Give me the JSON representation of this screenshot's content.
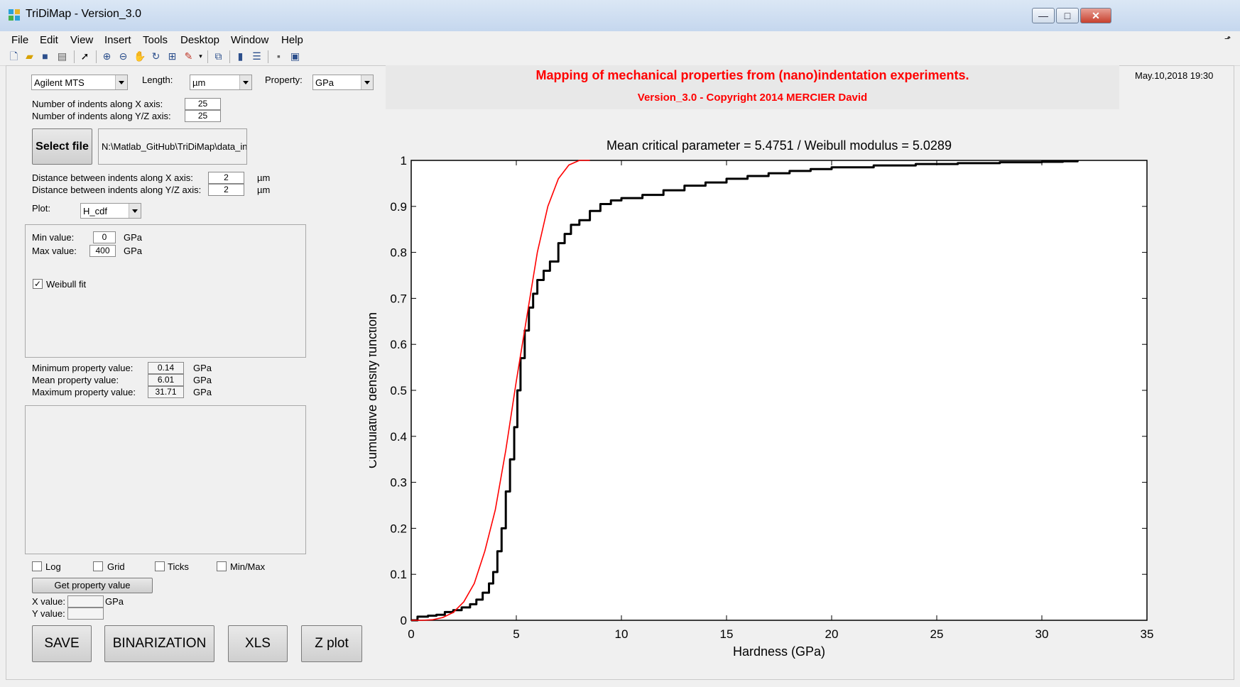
{
  "window": {
    "title": "TriDiMap - Version_3.0",
    "controls": {
      "minimize": "—",
      "maximize": "□",
      "close": "✕"
    }
  },
  "menu": [
    "File",
    "Edit",
    "View",
    "Insert",
    "Tools",
    "Desktop",
    "Window",
    "Help"
  ],
  "toolbar_icons": [
    "new-figure-icon",
    "open-file-icon",
    "save-icon",
    "print-icon",
    "pointer-icon",
    "zoom-in-icon",
    "zoom-out-icon",
    "pan-icon",
    "rotate-icon",
    "data-cursor-icon",
    "brush-icon",
    "link-icon",
    "colorbar-icon",
    "legend-icon",
    "hide-plot-tools-icon",
    "show-plot-tools-icon"
  ],
  "left": {
    "indenter_combo": "Agilent MTS",
    "length_label": "Length:",
    "length_combo": "µm",
    "property_label": "Property:",
    "property_combo": "GPa",
    "nx_label": "Number of indents along X axis:",
    "nx_value": "25",
    "ny_label": "Number of indents along Y/Z axis:",
    "ny_value": "25",
    "select_file_label": "Select file",
    "file_path": "N:\\Matlab_GitHub\\TriDiMap\\data_in",
    "dx_label": "Distance between indents along X axis:",
    "dx_value": "2",
    "dx_unit": "µm",
    "dy_label": "Distance between indents along Y/Z axis:",
    "dy_value": "2",
    "dy_unit": "µm",
    "plot_label": "Plot:",
    "plot_combo": "H_cdf",
    "min_label": "Min value:",
    "min_value": "0",
    "min_unit": "GPa",
    "max_label": "Max value:",
    "max_value": "400",
    "max_unit": "GPa",
    "weibull_label": "Weibull fit",
    "weibull_checked": true,
    "minprop_label": "Minimum property value:",
    "minprop_value": "0.14",
    "minprop_unit": "GPa",
    "meanprop_label": "Mean property value:",
    "meanprop_value": "6.01",
    "meanprop_unit": "GPa",
    "maxprop_label": "Maximum property value:",
    "maxprop_value": "31.71",
    "maxprop_unit": "GPa",
    "log_label": "Log",
    "grid_label": "Grid",
    "ticks_label": "Ticks",
    "minmax_label": "Min/Max",
    "get_property_label": "Get property value",
    "xvalue_label": "X value:",
    "xvalue_unit": "GPa",
    "yvalue_label": "Y value:",
    "save_label": "SAVE",
    "binarization_label": "BINARIZATION",
    "xls_label": "XLS",
    "zplot_label": "Z plot"
  },
  "header": {
    "main_title": "Mapping of mechanical properties from (nano)indentation experiments.",
    "sub_title": "Version_3.0 - Copyright 2014 MERCIER David",
    "date": "May.10,2018 19:30",
    "title_color": "#ff0000"
  },
  "chart_data": {
    "type": "line",
    "title": "Mean critical parameter = 5.4751 / Weibull modulus = 5.0289",
    "xlabel": "Hardness (GPa)",
    "ylabel": "Cumulative density function",
    "xlim": [
      0,
      35
    ],
    "ylim": [
      0,
      1
    ],
    "xticks": [
      0,
      5,
      10,
      15,
      20,
      25,
      30,
      35
    ],
    "yticks": [
      0,
      0.1,
      0.2,
      0.3,
      0.4,
      0.5,
      0.6,
      0.7,
      0.8,
      0.9,
      1
    ],
    "grid": false,
    "series": [
      {
        "color": "#000000",
        "x": [
          0.0,
          0.3,
          0.8,
          1.2,
          1.6,
          2.0,
          2.4,
          2.8,
          3.1,
          3.4,
          3.7,
          3.9,
          4.1,
          4.3,
          4.5,
          4.7,
          4.9,
          5.05,
          5.2,
          5.4,
          5.6,
          5.8,
          6.0,
          6.3,
          6.6,
          7.0,
          7.3,
          7.6,
          8.0,
          8.5,
          9.0,
          9.5,
          10.0,
          11.0,
          12.0,
          13.0,
          14.0,
          15.0,
          16.0,
          17.0,
          18.0,
          19.0,
          20.0,
          22.0,
          24.0,
          26.0,
          28.0,
          30.0,
          31.0,
          31.7
        ],
        "y": [
          0.0,
          0.008,
          0.01,
          0.012,
          0.018,
          0.022,
          0.028,
          0.035,
          0.045,
          0.06,
          0.08,
          0.105,
          0.15,
          0.2,
          0.28,
          0.35,
          0.42,
          0.5,
          0.57,
          0.63,
          0.68,
          0.71,
          0.74,
          0.76,
          0.78,
          0.82,
          0.84,
          0.86,
          0.87,
          0.89,
          0.905,
          0.913,
          0.918,
          0.925,
          0.935,
          0.945,
          0.952,
          0.96,
          0.966,
          0.972,
          0.977,
          0.981,
          0.985,
          0.989,
          0.992,
          0.994,
          0.996,
          0.997,
          0.998,
          1.0
        ]
      },
      {
        "color": "#ff0000",
        "x": [
          0.0,
          0.5,
          1.0,
          1.5,
          2.0,
          2.5,
          3.0,
          3.5,
          4.0,
          4.5,
          5.0,
          5.5,
          6.0,
          6.5,
          7.0,
          7.5,
          8.0,
          8.5
        ],
        "y": [
          0.0,
          0.0,
          0.001,
          0.006,
          0.017,
          0.04,
          0.08,
          0.15,
          0.24,
          0.37,
          0.52,
          0.66,
          0.8,
          0.9,
          0.96,
          0.99,
          1.0,
          1.0
        ]
      }
    ]
  }
}
